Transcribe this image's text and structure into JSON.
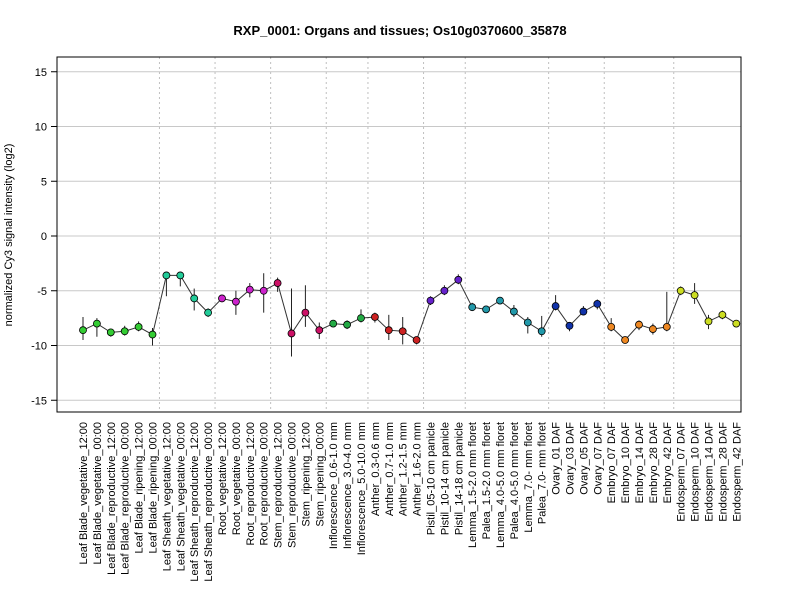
{
  "chart_data": {
    "type": "line",
    "title": "RXP_0001: Organs and tissues; Os10g0370600_35878",
    "xlabel": "",
    "ylabel": "normalized Cy3 signal intensity (log2)",
    "ylim": [
      -16,
      16
    ],
    "yticks": [
      -15,
      -10,
      -5,
      0,
      5,
      10,
      15
    ],
    "grid": true,
    "categories": [
      "Leaf Blade_vegetative_12:00",
      "Leaf Blade_vegetative_00:00",
      "Leaf Blade_reproductive_12:00",
      "Leaf Blade_reproductive_00:00",
      "Leaf Blade_ripening_12:00",
      "Leaf Blade_ripening_00:00",
      "Leaf Sheath_vegetative_12:00",
      "Leaf Sheath_vegetative_00:00",
      "Leaf Sheath_reproductive_12:00",
      "Leaf Sheath_reproductive_00:00",
      "Root_vegetative_12:00",
      "Root_vegetative_00:00",
      "Root_reproductive_12:00",
      "Root_reproductive_00:00",
      "Stem_reproductive_12:00",
      "Stem_reproductive_00:00",
      "Stem_ripening_12:00",
      "Stem_ripening_00:00",
      "Inflorescence_0.6-1.0 mm",
      "Inflorescence_3.0-4.0 mm",
      "Inflorescence_5.0-10.0 mm",
      "Anther_0.3-0.6 mm",
      "Anther_0.7-1.0 mm",
      "Anther_1.2-1.5 mm",
      "Anther_1.6-2.0 mm",
      "Pistil_05-10 cm panicle",
      "Pistil_10-14 cm panicle",
      "Pistil_14-18 cm panicle",
      "Lemma_1.5-2.0 mm floret",
      "Palea_1.5-2.0 mm floret",
      "Lemma_4.0-5.0 mm floret",
      "Palea_4.0-5.0 mm floret",
      "Lemma_7.0- mm floret",
      "Palea_7.0- mm floret",
      "Ovary_01 DAF",
      "Ovary_03 DAF",
      "Ovary_05 DAF",
      "Ovary_07 DAF",
      "Embryo_07 DAF",
      "Embryo_10 DAF",
      "Embryo_14 DAF",
      "Embryo_28 DAF",
      "Embryo_42 DAF",
      "Endosperm_07 DAF",
      "Endosperm_10 DAF",
      "Endosperm_14 DAF",
      "Endosperm_28 DAF",
      "Endosperm_42 DAF"
    ],
    "values": [
      -8.6,
      -8.0,
      -8.8,
      -8.7,
      -8.3,
      -9.0,
      -3.6,
      -3.6,
      -5.7,
      -7.0,
      -5.7,
      -6.0,
      -4.9,
      -5.0,
      -4.3,
      -8.9,
      -7.0,
      -8.6,
      -8.0,
      -8.1,
      -7.5,
      -7.4,
      -8.6,
      -8.7,
      -9.5,
      -5.9,
      -5.0,
      -4.0,
      -6.5,
      -6.7,
      -5.9,
      -6.9,
      -7.9,
      -8.7,
      -6.4,
      -8.2,
      -6.9,
      -6.2,
      -8.3,
      -9.5,
      -8.1,
      -8.5,
      -8.3,
      -5.0,
      -5.4,
      -7.8,
      -7.2,
      -8.0
    ],
    "error_low": [
      -9.5,
      -9.2,
      -9.2,
      -9.1,
      -8.7,
      -10.0,
      -5.5,
      -4.6,
      -6.8,
      -7.4,
      -6.0,
      -7.2,
      -5.6,
      -7.0,
      -5.1,
      -11.0,
      -8.3,
      -9.4,
      -8.3,
      -8.5,
      -7.9,
      -7.9,
      -9.5,
      -9.9,
      -9.9,
      -6.3,
      -5.4,
      -4.4,
      -6.8,
      -7.0,
      -6.2,
      -7.4,
      -8.9,
      -9.2,
      -6.8,
      -8.7,
      -7.2,
      -6.7,
      -8.7,
      -9.8,
      -8.6,
      -9.0,
      -8.7,
      -5.4,
      -6.2,
      -8.5,
      -7.6,
      -8.3
    ],
    "error_high": [
      -7.4,
      -7.5,
      -8.5,
      -8.2,
      -7.8,
      -8.4,
      -3.3,
      -3.3,
      -4.8,
      -6.6,
      -5.5,
      -5.0,
      -4.3,
      -3.4,
      -3.8,
      -4.8,
      -4.5,
      -7.9,
      -7.7,
      -7.7,
      -6.7,
      -7.0,
      -7.2,
      -7.4,
      -9.2,
      -5.5,
      -4.5,
      -3.5,
      -6.1,
      -6.4,
      -5.7,
      -6.3,
      -7.4,
      -7.3,
      -5.4,
      -7.9,
      -6.4,
      -5.8,
      -7.5,
      -9.2,
      -7.7,
      -8.0,
      -5.1,
      -4.6,
      -4.3,
      -7.2,
      -6.8,
      -7.8
    ],
    "colors": [
      "#33cc33",
      "#33cc33",
      "#33cc33",
      "#33cc33",
      "#33cc33",
      "#33cc33",
      "#22cc99",
      "#22cc99",
      "#22cc99",
      "#22cc99",
      "#cc22cc",
      "#cc22cc",
      "#cc22cc",
      "#cc22cc",
      "#cc1166",
      "#cc1166",
      "#cc1166",
      "#cc1166",
      "#22aa44",
      "#22aa44",
      "#22aa44",
      "#cc2222",
      "#cc2222",
      "#cc2222",
      "#cc2222",
      "#6622cc",
      "#6622cc",
      "#6622cc",
      "#2299aa",
      "#2299aa",
      "#2299aa",
      "#2299aa",
      "#2299aa",
      "#2299aa",
      "#1133aa",
      "#1133aa",
      "#1133aa",
      "#1133aa",
      "#ee8822",
      "#ee8822",
      "#ee8822",
      "#ee8822",
      "#ee8822",
      "#ccdd22",
      "#ccdd22",
      "#ccdd22",
      "#ccdd22",
      "#ccdd22"
    ]
  }
}
